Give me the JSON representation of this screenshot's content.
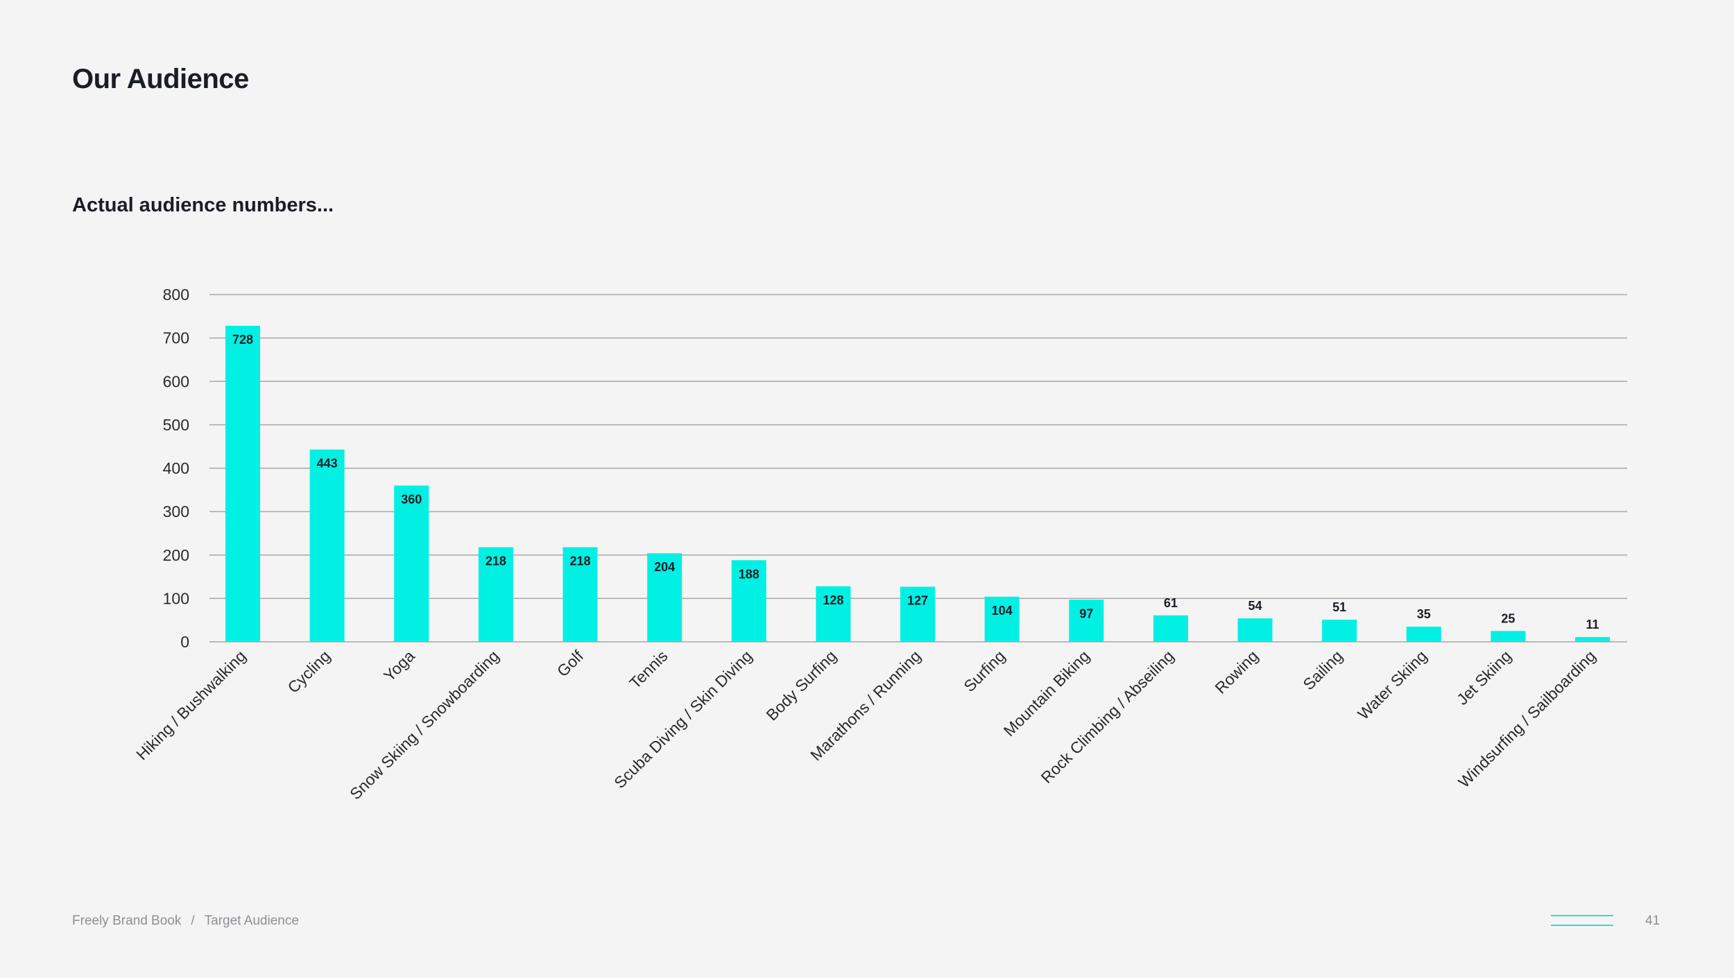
{
  "page": {
    "title": "Our Audience",
    "subtitle": "Actual audience numbers..."
  },
  "footer": {
    "brand": "Freely Brand Book",
    "separator": "/",
    "section": "Target Audience",
    "page_number": "41"
  },
  "colors": {
    "bar": "#00f0e4",
    "gridline": "#a6a6a6",
    "text": "#1a1d24",
    "background": "#f4f4f4",
    "footer_accent": "#2ed9d6"
  },
  "chart_data": {
    "type": "bar",
    "title": "",
    "xlabel": "",
    "ylabel": "",
    "ylim": [
      0,
      800
    ],
    "yticks": [
      0,
      100,
      200,
      300,
      400,
      500,
      600,
      700,
      800
    ],
    "grid": true,
    "categories": [
      "Hiking / Bushwalking",
      "Cycling",
      "Yoga",
      "Snow Skiing / Snowboarding",
      "Golf",
      "Tennis",
      "Scuba Diving / Skin Diving",
      "Body Surfing",
      "Marathons / Running",
      "Surfing",
      "Mountain Biking",
      "Rock Climbing / Abseiling",
      "Rowing",
      "Sailing",
      "Water Skiing",
      "Jet Skiing",
      "Windsurfing / Sailboarding"
    ],
    "values": [
      728,
      443,
      360,
      218,
      218,
      204,
      188,
      128,
      127,
      104,
      97,
      61,
      54,
      51,
      35,
      25,
      11
    ],
    "data_labels": [
      "728",
      "443",
      "360",
      "218",
      "218",
      "204",
      "188",
      "128",
      "127",
      "104",
      "97",
      "61",
      "54",
      "51",
      "35",
      "25",
      "11"
    ]
  }
}
